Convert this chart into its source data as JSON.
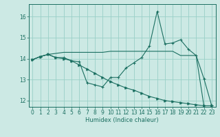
{
  "xlabel": "Humidex (Indice chaleur)",
  "xlim": [
    -0.5,
    23.5
  ],
  "ylim": [
    11.7,
    16.6
  ],
  "yticks": [
    12,
    13,
    14,
    15,
    16
  ],
  "xticks": [
    0,
    1,
    2,
    3,
    4,
    5,
    6,
    7,
    8,
    9,
    10,
    11,
    12,
    13,
    14,
    15,
    16,
    17,
    18,
    19,
    20,
    21,
    22,
    23
  ],
  "background_color": "#cce9e4",
  "grid_color": "#99cfc7",
  "line_color": "#1a6e60",
  "line1_x": [
    0,
    1,
    2,
    3,
    4,
    5,
    6,
    7,
    8,
    9,
    10,
    11,
    12,
    13,
    14,
    15,
    16,
    17,
    18,
    19,
    20,
    21,
    22,
    23
  ],
  "line1_y": [
    13.95,
    14.1,
    14.2,
    14.05,
    14.05,
    13.9,
    13.85,
    12.85,
    12.75,
    12.65,
    13.1,
    13.1,
    13.55,
    13.8,
    14.05,
    14.6,
    16.25,
    14.7,
    14.75,
    14.9,
    14.45,
    14.15,
    13.05,
    11.75
  ],
  "line2_x": [
    0,
    1,
    2,
    3,
    4,
    5,
    6,
    7,
    8,
    9,
    10,
    11,
    12,
    13,
    14,
    15,
    16,
    17,
    18,
    19,
    20,
    21,
    22,
    23
  ],
  "line2_y": [
    13.95,
    14.1,
    14.2,
    14.25,
    14.3,
    14.3,
    14.3,
    14.3,
    14.3,
    14.3,
    14.35,
    14.35,
    14.35,
    14.35,
    14.35,
    14.35,
    14.35,
    14.35,
    14.35,
    14.15,
    14.15,
    14.15,
    11.75,
    11.75
  ],
  "line3_x": [
    0,
    1,
    2,
    3,
    4,
    5,
    6,
    7,
    8,
    9,
    10,
    11,
    12,
    13,
    14,
    15,
    16,
    17,
    18,
    19,
    20,
    21,
    22,
    23
  ],
  "line3_y": [
    13.95,
    14.1,
    14.2,
    14.05,
    14.0,
    13.9,
    13.7,
    13.5,
    13.3,
    13.1,
    12.9,
    12.75,
    12.6,
    12.5,
    12.35,
    12.2,
    12.1,
    12.0,
    11.95,
    11.9,
    11.85,
    11.8,
    11.75,
    11.75
  ],
  "tick_fontsize": 5.5,
  "label_fontsize": 6.0
}
